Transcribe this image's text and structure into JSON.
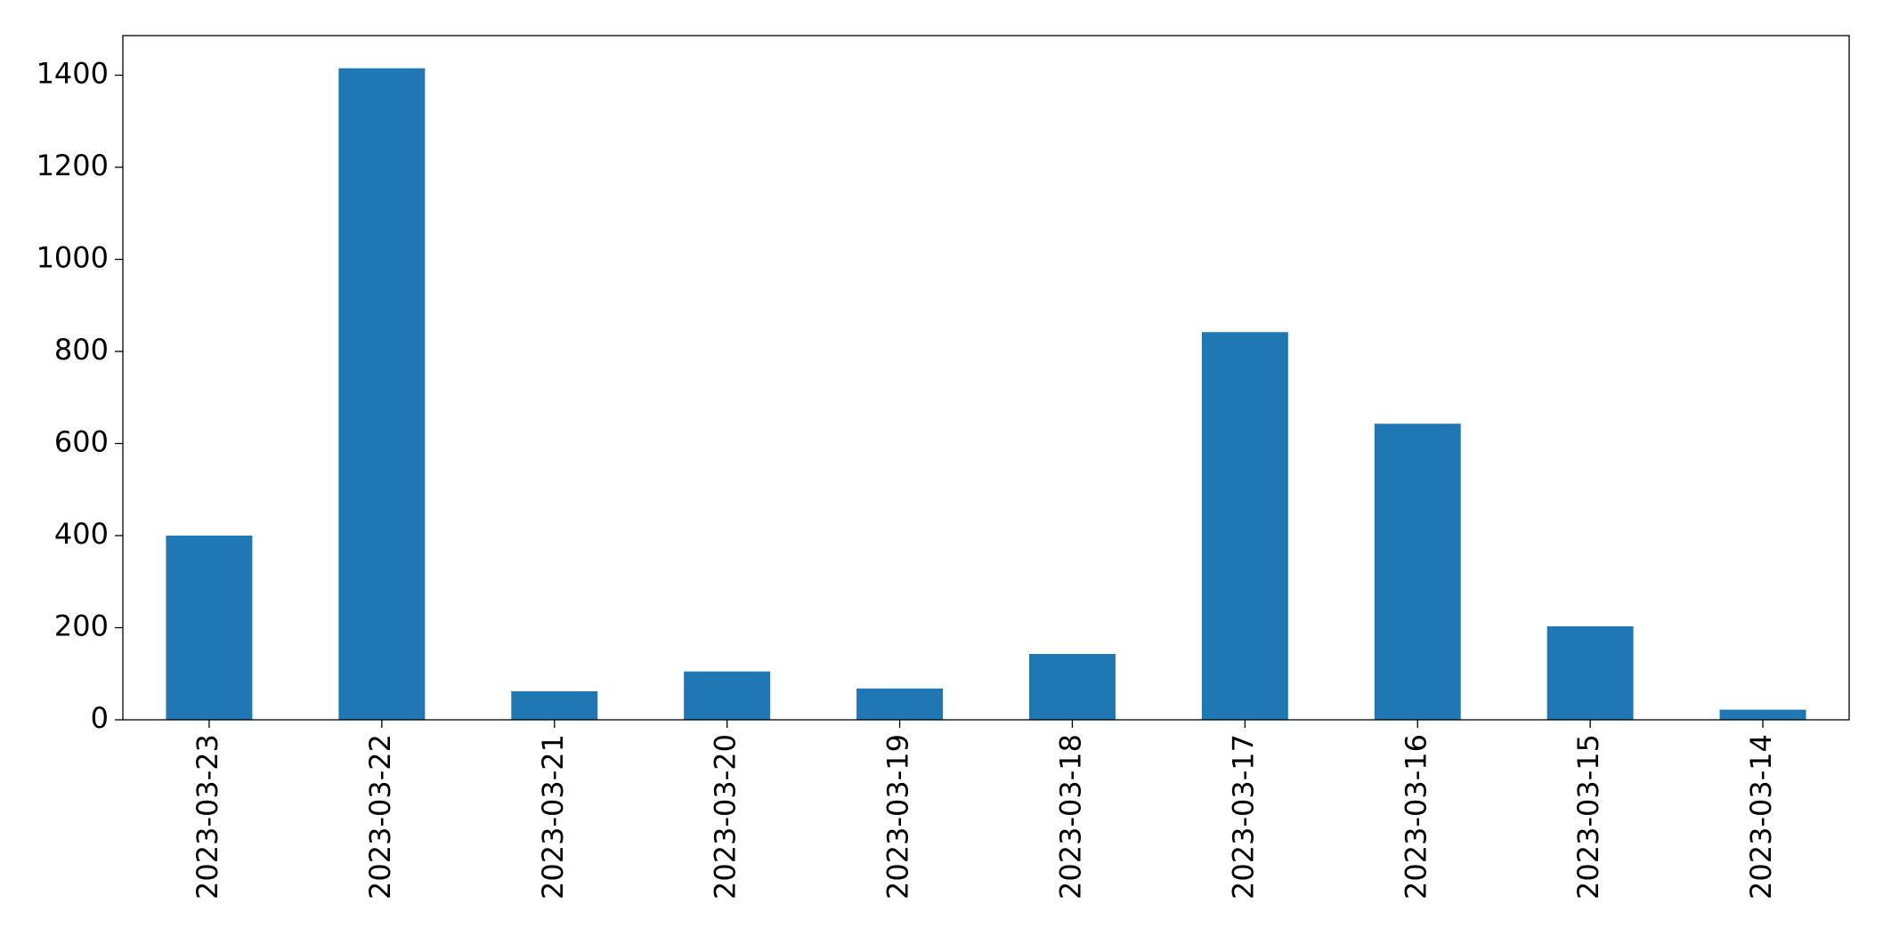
{
  "chart_data": {
    "type": "bar",
    "categories": [
      "2023-03-23",
      "2023-03-22",
      "2023-03-21",
      "2023-03-20",
      "2023-03-19",
      "2023-03-18",
      "2023-03-17",
      "2023-03-16",
      "2023-03-15",
      "2023-03-14"
    ],
    "values": [
      400,
      1415,
      62,
      105,
      68,
      143,
      842,
      643,
      203,
      22
    ],
    "color": "#1f77b4",
    "ylim": [
      0,
      1486
    ],
    "yticks": [
      0,
      200,
      400,
      600,
      800,
      1000,
      1200,
      1400
    ],
    "grid": false
  }
}
